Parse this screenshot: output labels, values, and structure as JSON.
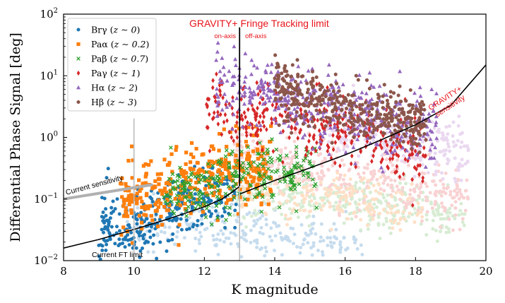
{
  "chart_data": {
    "type": "scatter",
    "xlabel": "K magnitude",
    "ylabel": "Differential Phase Signal [deg]",
    "xlim": [
      8,
      20
    ],
    "ylim": [
      0.01,
      100
    ],
    "yscale": "log",
    "x_ticks": [
      "8",
      "10",
      "12",
      "14",
      "16",
      "18",
      "20"
    ],
    "y_ticks": [
      {
        "base": "10",
        "exp": "−2",
        "value": 0.01
      },
      {
        "base": "10",
        "exp": "−1",
        "value": 0.1
      },
      {
        "base": "10",
        "exp": "0",
        "value": 1
      },
      {
        "base": "10",
        "exp": "1",
        "value": 10
      },
      {
        "base": "10",
        "exp": "2",
        "value": 100
      }
    ],
    "legend": {
      "position": "top-left",
      "entries": [
        {
          "name": "Brγ",
          "z": "z ∼ 0",
          "color": "#1f77b4",
          "marker": "circle"
        },
        {
          "name": "Paα",
          "z": "z ∼ 0.2",
          "color": "#ff7f0e",
          "marker": "square"
        },
        {
          "name": "Paβ",
          "z": "z ∼ 0.7",
          "color": "#2ca02c",
          "marker": "x"
        },
        {
          "name": "Paγ",
          "z": "z ∼ 1",
          "color": "#d62728",
          "marker": "diamond"
        },
        {
          "name": "Hα",
          "z": "z ∼ 2",
          "color": "#9467bd",
          "marker": "triangle"
        },
        {
          "name": "Hβ",
          "z": "z ∼ 3",
          "color": "#8c564b",
          "marker": "hexagon"
        }
      ]
    },
    "series": [
      {
        "name": "Brγ (z∼0)",
        "color": "#1f77b4",
        "marker": "circle",
        "seed": 11,
        "n": 320,
        "kmin": 9.0,
        "kmax": 12.9,
        "center": [
          -1.55,
          -1.2,
          -0.9
        ],
        "spread": 0.28
      },
      {
        "name": "Paα (z∼0.2)",
        "color": "#ff7f0e",
        "marker": "square",
        "seed": 23,
        "n": 360,
        "kmin": 9.6,
        "kmax": 13.9,
        "center": [
          -1.0,
          -0.65,
          -0.45
        ],
        "spread": 0.28
      },
      {
        "name": "Paβ (z∼0.7)",
        "color": "#2ca02c",
        "marker": "x",
        "seed": 37,
        "n": 260,
        "kmin": 10.8,
        "kmax": 15.2,
        "center": [
          -0.95,
          -0.7,
          -0.55
        ],
        "spread": 0.25
      },
      {
        "name": "Paγ (z∼1)",
        "color": "#d62728",
        "marker": "diamond",
        "seed": 41,
        "n": 340,
        "kmin": 12.0,
        "kmax": 18.3,
        "center": [
          0.5,
          0.15,
          -0.25
        ],
        "spread": 0.28
      },
      {
        "name": "Hα (z∼2)",
        "color": "#9467bd",
        "marker": "triangle",
        "seed": 53,
        "n": 420,
        "kmin": 12.3,
        "kmax": 18.6,
        "center": [
          0.9,
          0.45,
          0.15
        ],
        "spread": 0.3
      },
      {
        "name": "Hβ (z∼3)",
        "color": "#8c564b",
        "marker": "hexagon",
        "seed": 67,
        "n": 420,
        "kmin": 14.0,
        "kmax": 18.3,
        "center": [
          0.8,
          0.45,
          0.2
        ],
        "spread": 0.2
      }
    ],
    "faded_series": [
      {
        "color": "#c6dcee",
        "seed": 101,
        "n": 260,
        "kmin": 9.8,
        "kmax": 16.5,
        "center": [
          -1.35,
          -1.5,
          -1.75
        ],
        "spread": 0.2
      },
      {
        "color": "#d7ecd3",
        "seed": 103,
        "n": 320,
        "kmin": 12.8,
        "kmax": 19.4,
        "center": [
          -0.9,
          -1.05,
          -1.3
        ],
        "spread": 0.2
      },
      {
        "color": "#f9d2d3",
        "seed": 107,
        "n": 380,
        "kmin": 12.8,
        "kmax": 19.5,
        "center": [
          -0.3,
          -0.6,
          -0.95
        ],
        "spread": 0.25
      },
      {
        "color": "#ffe0c6",
        "seed": 109,
        "n": 200,
        "kmin": 13.0,
        "kmax": 18.2,
        "center": [
          -0.9,
          -1.0,
          -1.2
        ],
        "spread": 0.2
      },
      {
        "color": "#ead8f0",
        "seed": 113,
        "n": 240,
        "kmin": 15.5,
        "kmax": 19.5,
        "center": [
          0.2,
          0.0,
          -0.3
        ],
        "spread": 0.25
      }
    ],
    "lines": [
      {
        "name": "Current sensitivity",
        "color": "#b0b0b0",
        "width": 4,
        "points": [
          [
            8.0,
            0.1
          ],
          [
            10.5,
            0.17
          ]
        ]
      },
      {
        "name": "Current FT limit",
        "color": "#000000",
        "width": 1.6,
        "points": [
          [
            8.0,
            0.016
          ],
          [
            9.0,
            0.022
          ],
          [
            10.0,
            0.032
          ],
          [
            11.0,
            0.048
          ],
          [
            12.0,
            0.075
          ],
          [
            12.5,
            0.1
          ],
          [
            12.8,
            0.13
          ],
          [
            13.0,
            0.16
          ]
        ]
      },
      {
        "name": "GRAVITY+ sensitivity",
        "color": "#000000",
        "width": 1.6,
        "points": [
          [
            13.0,
            0.12
          ],
          [
            14.0,
            0.2
          ],
          [
            15.0,
            0.32
          ],
          [
            16.0,
            0.52
          ],
          [
            17.0,
            0.9
          ],
          [
            18.0,
            1.6
          ],
          [
            19.0,
            3.3
          ],
          [
            20.0,
            15.0
          ]
        ]
      },
      {
        "name": "On-axis limit",
        "color": "#000000",
        "width": 1.8,
        "points": [
          [
            13.0,
            0.16
          ],
          [
            13.0,
            60
          ]
        ]
      },
      {
        "name": "FT limit grey",
        "color": "#b8b8b8",
        "width": 1.5,
        "points": [
          [
            13.0,
            0.01
          ],
          [
            13.0,
            0.16
          ]
        ]
      },
      {
        "name": "Current limit grey",
        "color": "#b8b8b8",
        "width": 1.5,
        "points": [
          [
            10.0,
            0.01
          ],
          [
            10.0,
            2.0
          ]
        ]
      }
    ],
    "annotations": {
      "gravity_ft_title": "GRAVITY+ Fringe Tracking limit",
      "on_axis": "on-axis",
      "off_axis": "off-axis",
      "gravity_sensitivity": "GRAVITY+\nsensitivity",
      "current_sensitivity": "Current sensitivity",
      "current_ft_limit": "Current FT limit"
    }
  }
}
